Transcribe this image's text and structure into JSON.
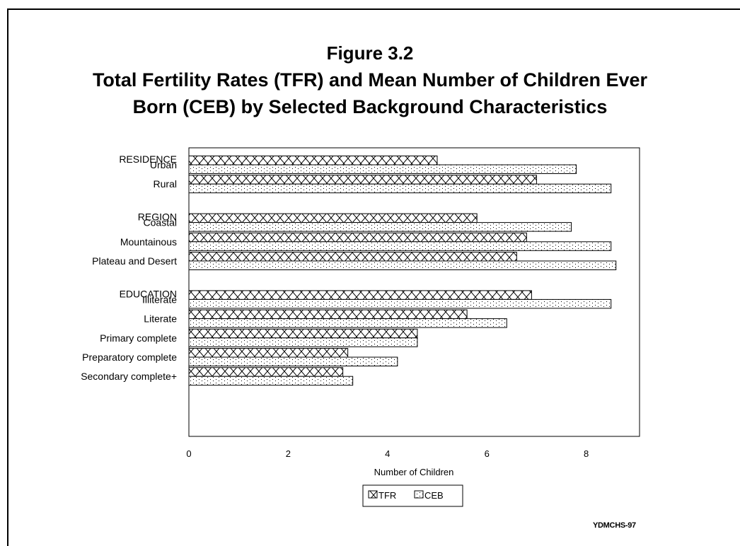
{
  "figure": {
    "title": "Figure 3.2",
    "subtitle_line1": "Total Fertility Rates (TFR) and Mean Number of Children Ever",
    "subtitle_line2": "Born (CEB) by Selected Background Characteristics",
    "source": "YDMCHS-97"
  },
  "chart_data": {
    "type": "bar",
    "orientation": "horizontal",
    "title": "Figure 3.2",
    "subtitle": "Total Fertility Rates (TFR) and Mean Number of Children Ever Born (CEB) by Selected Background Characteristics",
    "xlabel": "Number of Children",
    "ylabel": "",
    "xlim": [
      0,
      9
    ],
    "x_ticks": [
      0,
      2,
      4,
      6,
      8
    ],
    "legend": {
      "placement": "bottom-center",
      "entries": [
        "TFR",
        "CEB"
      ]
    },
    "groups": [
      {
        "name": "RESIDENCE",
        "categories": [
          "Urban",
          "Rural"
        ]
      },
      {
        "name": "REGION",
        "categories": [
          "Coastal",
          "Mountainous",
          "Plateau and Desert"
        ]
      },
      {
        "name": "EDUCATION",
        "categories": [
          "Illiterate",
          "Literate",
          "Primary complete",
          "Preparatory complete",
          "Secondary complete+"
        ]
      }
    ],
    "categories": [
      "Urban",
      "Rural",
      "Coastal",
      "Mountainous",
      "Plateau and Desert",
      "Illiterate",
      "Literate",
      "Primary complete",
      "Preparatory complete",
      "Secondary complete+"
    ],
    "series": [
      {
        "name": "TFR",
        "pattern": "crosshatch",
        "values": [
          5.0,
          7.0,
          5.8,
          6.8,
          6.6,
          6.9,
          5.6,
          4.6,
          3.2,
          3.1
        ]
      },
      {
        "name": "CEB",
        "pattern": "dots",
        "values": [
          7.8,
          8.5,
          7.7,
          8.5,
          8.6,
          8.5,
          6.4,
          4.6,
          4.2,
          3.3
        ]
      }
    ],
    "grid": false
  }
}
